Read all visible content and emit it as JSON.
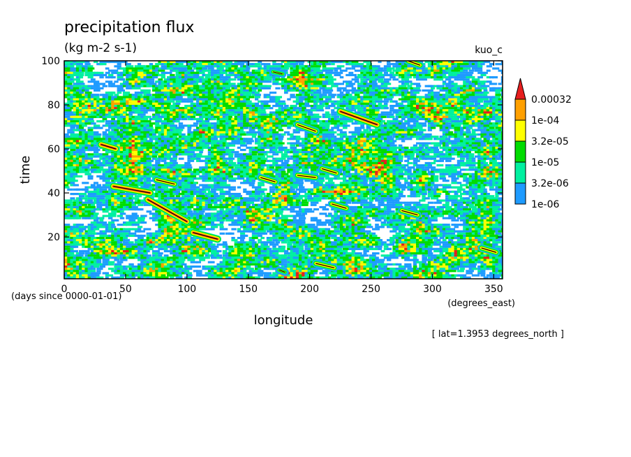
{
  "chart_data": {
    "type": "heatmap",
    "title": "precipitation flux",
    "subtitle": "(kg m-2 s-1)",
    "dataset_label": "kuo_c",
    "xlabel": "longitude",
    "x_units": "(degrees_east)",
    "ylabel": "time",
    "y_units": "(days since 0000-01-01)",
    "xlim": [
      0,
      357.19
    ],
    "ylim": [
      1,
      100
    ],
    "x_ticks": [
      0,
      50,
      100,
      150,
      200,
      250,
      300,
      350
    ],
    "y_ticks": [
      20,
      40,
      60,
      80,
      100
    ],
    "x_tick_labels": [
      "0",
      "50",
      "100",
      "150",
      "200",
      "250",
      "300",
      "350"
    ],
    "y_tick_labels": [
      "20",
      "40",
      "60",
      "80",
      "100"
    ],
    "annotation": "[ lat=1.3953 degrees_north ]",
    "colorbar": {
      "scale": "log",
      "levels": [
        1e-06,
        3.2e-06,
        1e-05,
        3.2e-05,
        0.0001,
        0.00032
      ],
      "level_labels": [
        "1e-06",
        "3.2e-06",
        "1e-05",
        "3.2e-05",
        "1e-04",
        "0.00032"
      ],
      "colors": [
        "#1e9bff",
        "#00f0a0",
        "#00dc00",
        "#ffff00",
        "#ffa000",
        "#e61e1e"
      ],
      "extend": "max"
    },
    "features": [
      {
        "x": [
          30,
          42
        ],
        "y": [
          62,
          60
        ],
        "level": 5
      },
      {
        "x": [
          40,
          70
        ],
        "y": [
          43,
          40
        ],
        "level": 5
      },
      {
        "x": [
          68,
          100
        ],
        "y": [
          37,
          27
        ],
        "level": 5
      },
      {
        "x": [
          75,
          90
        ],
        "y": [
          46,
          44
        ],
        "level": 4
      },
      {
        "x": [
          105,
          125
        ],
        "y": [
          22,
          19
        ],
        "level": 5
      },
      {
        "x": [
          160,
          172
        ],
        "y": [
          47,
          45
        ],
        "level": 4
      },
      {
        "x": [
          190,
          205
        ],
        "y": [
          71,
          68
        ],
        "level": 4
      },
      {
        "x": [
          190,
          205
        ],
        "y": [
          48,
          47
        ],
        "level": 4
      },
      {
        "x": [
          210,
          222
        ],
        "y": [
          51,
          49
        ],
        "level": 4
      },
      {
        "x": [
          218,
          230
        ],
        "y": [
          35,
          33
        ],
        "level": 4
      },
      {
        "x": [
          225,
          255
        ],
        "y": [
          77,
          71
        ],
        "level": 5
      },
      {
        "x": [
          275,
          288
        ],
        "y": [
          32,
          30
        ],
        "level": 4
      },
      {
        "x": [
          340,
          352
        ],
        "y": [
          15,
          13
        ],
        "level": 4
      },
      {
        "x": [
          205,
          220
        ],
        "y": [
          8,
          6
        ],
        "level": 4
      },
      {
        "x": [
          175,
          180
        ],
        "y": [
          5,
          4
        ],
        "level": 3
      },
      {
        "x": [
          170,
          178
        ],
        "y": [
          95,
          94
        ],
        "level": 3
      },
      {
        "x": [
          280,
          290
        ],
        "y": [
          100,
          98
        ],
        "level": 4
      }
    ]
  }
}
